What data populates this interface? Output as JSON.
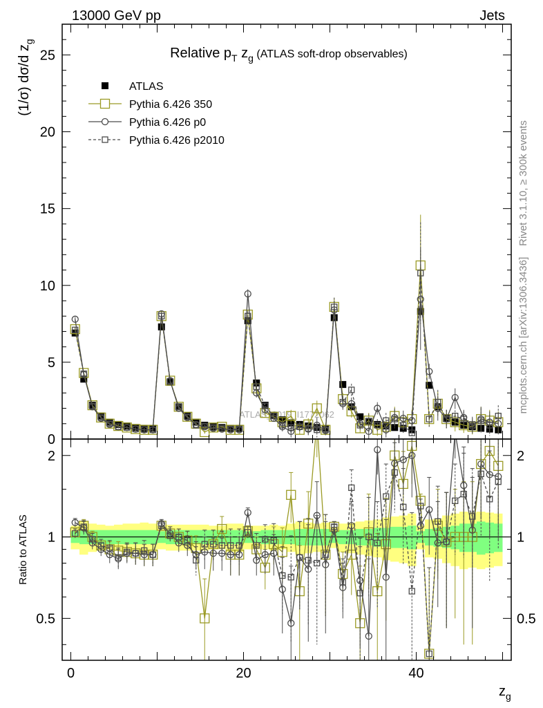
{
  "header": {
    "process": "13000 GeV pp",
    "category": "Jets"
  },
  "side": {
    "rivet": "Rivet 3.1.10, ≥ 300k events",
    "site": "mcplots.cern.ch [arXiv:1306.3436]"
  },
  "chart_data": {
    "type": "line",
    "title_prefix": "Relative p",
    "title_sub1": "T",
    "title_mid": " z",
    "title_sub2": "g",
    "title_suffix": " (ATLAS soft-drop observables)",
    "watermark": "ATLAS_2019_I1772062",
    "ylabel": "(1/σ) dσ/d z",
    "ylabel_sub": "g",
    "xlabel": "z",
    "xlabel_sub": "g",
    "ratio_ylabel": "Ratio to ATLAS",
    "xlim": [
      -1,
      51
    ],
    "ylim": [
      0,
      27
    ],
    "ratio_ylim": [
      0.35,
      2.3
    ],
    "xticks": [
      0,
      20,
      40
    ],
    "yticks": [
      0,
      5,
      10,
      15,
      20,
      25
    ],
    "ratio_ticks": [
      0.5,
      1,
      2
    ],
    "ratio_tick_labels": [
      "0.5",
      "1",
      "2"
    ],
    "legend": [
      {
        "name": "ATLAS",
        "style": "data",
        "color": "#000000"
      },
      {
        "name": "Pythia 6.426 350",
        "style": "square-solid",
        "color": "#9a9a24"
      },
      {
        "name": "Pythia 6.426 p0",
        "style": "circle-solid",
        "color": "#4a4a4a"
      },
      {
        "name": "Pythia 6.426 p2010",
        "style": "square-dashed",
        "color": "#4a4a4a"
      }
    ],
    "x": [
      0.5,
      1.5,
      2.5,
      3.5,
      4.5,
      5.5,
      6.5,
      7.5,
      8.5,
      9.5,
      10.5,
      11.5,
      12.5,
      13.5,
      14.5,
      15.5,
      16.5,
      17.5,
      18.5,
      19.5,
      20.5,
      21.5,
      22.5,
      23.5,
      24.5,
      25.5,
      26.5,
      27.5,
      28.5,
      29.5,
      30.5,
      31.5,
      32.5,
      33.5,
      34.5,
      35.5,
      36.5,
      37.5,
      38.5,
      39.5,
      40.5,
      41.5,
      42.5,
      43.5,
      44.5,
      45.5,
      46.5,
      47.5,
      48.5,
      49.5
    ],
    "series": [
      {
        "name": "ATLAS",
        "values": [
          6.9,
          3.9,
          2.2,
          1.5,
          1.1,
          0.95,
          0.85,
          0.75,
          0.7,
          0.7,
          7.3,
          3.7,
          2.1,
          1.5,
          1.1,
          0.9,
          0.8,
          0.75,
          0.7,
          0.7,
          7.7,
          3.65,
          2.2,
          1.55,
          1.25,
          1.05,
          0.95,
          0.85,
          0.75,
          0.7,
          7.9,
          3.55,
          2.1,
          1.45,
          1.15,
          0.95,
          0.85,
          0.75,
          0.7,
          0.6,
          8.3,
          3.5,
          2.1,
          1.35,
          1.1,
          0.9,
          0.8,
          0.7,
          0.65,
          0.6
        ],
        "band_inner": [
          0.05,
          0.06,
          0.06,
          0.06,
          0.06,
          0.06,
          0.06,
          0.06,
          0.06,
          0.06,
          0.05,
          0.06,
          0.06,
          0.06,
          0.06,
          0.06,
          0.06,
          0.06,
          0.06,
          0.06,
          0.05,
          0.05,
          0.06,
          0.06,
          0.06,
          0.06,
          0.07,
          0.07,
          0.07,
          0.07,
          0.05,
          0.06,
          0.06,
          0.07,
          0.07,
          0.08,
          0.08,
          0.09,
          0.09,
          0.1,
          0.05,
          0.07,
          0.08,
          0.09,
          0.1,
          0.12,
          0.12,
          0.14,
          0.13,
          0.12
        ],
        "band_outer": [
          0.1,
          0.14,
          0.12,
          0.11,
          0.1,
          0.11,
          0.12,
          0.12,
          0.13,
          0.12,
          0.1,
          0.11,
          0.11,
          0.11,
          0.11,
          0.11,
          0.1,
          0.1,
          0.12,
          0.12,
          0.1,
          0.1,
          0.1,
          0.11,
          0.1,
          0.12,
          0.14,
          0.13,
          0.12,
          0.13,
          0.09,
          0.12,
          0.13,
          0.14,
          0.15,
          0.16,
          0.18,
          0.19,
          0.2,
          0.22,
          0.1,
          0.16,
          0.17,
          0.2,
          0.22,
          0.24,
          0.23,
          0.24,
          0.23,
          0.22
        ]
      },
      {
        "name": "Pythia 6.426 350",
        "values": [
          7.15,
          4.3,
          2.2,
          1.4,
          1.0,
          0.85,
          0.75,
          0.65,
          0.6,
          0.6,
          8.0,
          3.8,
          2.1,
          1.45,
          1.0,
          0.45,
          0.75,
          0.8,
          0.6,
          0.6,
          8.1,
          3.3,
          1.7,
          1.45,
          1.1,
          1.5,
          0.6,
          0.95,
          2.0,
          0.6,
          8.6,
          2.6,
          1.8,
          0.7,
          1.2,
          0.6,
          0.8,
          1.5,
          1.1,
          1.3,
          11.3,
          1.3,
          2.3,
          1.3,
          1.1,
          0.9,
          0.8,
          1.3,
          1.2,
          1.1
        ],
        "ratio": [
          1.04,
          1.1,
          1.0,
          0.93,
          0.9,
          0.89,
          0.88,
          0.87,
          0.86,
          0.86,
          1.1,
          1.03,
          1.0,
          0.97,
          0.91,
          0.5,
          0.94,
          1.07,
          0.86,
          0.86,
          1.05,
          0.9,
          0.77,
          0.94,
          0.88,
          1.43,
          0.63,
          1.12,
          2.67,
          0.86,
          1.09,
          0.73,
          0.86,
          0.48,
          1.04,
          0.63,
          0.94,
          2.0,
          1.57,
          2.17,
          1.36,
          0.37,
          1.1,
          0.96,
          1.0,
          1.0,
          1.0,
          1.86,
          2.08,
          1.83
        ],
        "ratio_err": [
          0.04,
          0.06,
          0.05,
          0.05,
          0.06,
          0.07,
          0.07,
          0.08,
          0.08,
          0.08,
          0.04,
          0.06,
          0.07,
          0.08,
          0.1,
          0.2,
          0.12,
          0.12,
          0.14,
          0.14,
          0.05,
          0.1,
          0.13,
          0.15,
          0.2,
          0.3,
          0.3,
          0.35,
          0.7,
          0.35,
          0.05,
          0.15,
          0.25,
          0.3,
          0.4,
          0.4,
          0.45,
          0.5,
          0.5,
          0.6,
          0.08,
          0.4,
          0.4,
          0.5,
          0.5,
          0.6,
          0.6,
          0.7,
          0.7,
          0.7
        ],
        "errors": [
          0.15,
          0.15,
          0.1,
          0.1,
          0.1,
          0.1,
          0.1,
          0.1,
          0.1,
          0.1,
          0.2,
          0.15,
          0.1,
          0.1,
          0.1,
          0.1,
          0.1,
          0.1,
          0.1,
          0.1,
          0.3,
          0.3,
          0.2,
          0.2,
          0.3,
          0.4,
          0.3,
          0.4,
          0.5,
          0.3,
          0.6,
          0.4,
          0.4,
          0.3,
          0.5,
          0.4,
          0.5,
          0.6,
          0.5,
          0.6,
          3.3,
          0.5,
          0.8,
          0.6,
          0.6,
          0.5,
          0.5,
          0.8,
          0.7,
          0.7
        ]
      },
      {
        "name": "Pythia 6.426 p0",
        "values": [
          7.8,
          4.2,
          2.1,
          1.35,
          0.95,
          0.8,
          0.75,
          0.65,
          0.6,
          0.6,
          8.15,
          3.8,
          2.0,
          1.4,
          0.95,
          0.8,
          0.7,
          0.65,
          0.6,
          0.6,
          9.45,
          3.0,
          1.9,
          1.35,
          0.8,
          0.5,
          0.8,
          0.65,
          0.9,
          0.55,
          8.4,
          2.3,
          2.3,
          1.0,
          0.5,
          2.0,
          0.6,
          1.4,
          1.35,
          1.2,
          9.1,
          4.4,
          2.0,
          1.3,
          2.7,
          1.4,
          0.85,
          1.3,
          1.1,
          1.0
        ],
        "ratio": [
          1.13,
          1.08,
          0.95,
          0.9,
          0.86,
          0.83,
          0.87,
          0.87,
          0.86,
          0.86,
          1.12,
          1.03,
          0.95,
          0.93,
          0.86,
          0.88,
          0.87,
          0.87,
          0.86,
          0.86,
          1.23,
          0.82,
          0.86,
          0.87,
          0.64,
          0.48,
          0.84,
          0.76,
          1.2,
          0.79,
          1.06,
          0.65,
          1.1,
          0.69,
          0.43,
          2.1,
          0.71,
          1.87,
          1.93,
          2.0,
          1.1,
          1.26,
          0.95,
          0.96,
          2.45,
          1.55,
          1.06,
          1.86,
          1.7,
          1.67
        ],
        "ratio_err": [
          0.04,
          0.06,
          0.05,
          0.05,
          0.06,
          0.07,
          0.07,
          0.08,
          0.08,
          0.08,
          0.04,
          0.06,
          0.07,
          0.08,
          0.1,
          0.12,
          0.12,
          0.12,
          0.14,
          0.14,
          0.05,
          0.1,
          0.13,
          0.15,
          0.2,
          0.3,
          0.3,
          0.35,
          0.4,
          0.35,
          0.05,
          0.15,
          0.25,
          0.3,
          0.4,
          0.4,
          0.45,
          0.5,
          0.5,
          0.6,
          0.08,
          0.4,
          0.4,
          0.5,
          0.5,
          0.6,
          0.6,
          0.7,
          0.7,
          0.7
        ],
        "errors": [
          0.15,
          0.15,
          0.1,
          0.1,
          0.1,
          0.1,
          0.1,
          0.1,
          0.1,
          0.1,
          0.2,
          0.15,
          0.1,
          0.1,
          0.1,
          0.1,
          0.1,
          0.1,
          0.1,
          0.1,
          0.3,
          0.3,
          0.2,
          0.2,
          0.3,
          0.4,
          0.3,
          0.4,
          0.5,
          0.3,
          0.6,
          0.4,
          0.4,
          0.3,
          0.5,
          0.4,
          0.5,
          0.6,
          0.5,
          0.6,
          3.3,
          0.5,
          0.8,
          0.6,
          0.6,
          0.5,
          0.5,
          0.8,
          0.7,
          0.7
        ]
      },
      {
        "name": "Pythia 6.426 p2010",
        "values": [
          7.1,
          4.25,
          2.15,
          1.4,
          1.0,
          0.8,
          0.75,
          0.65,
          0.62,
          0.6,
          8.0,
          3.75,
          2.1,
          1.45,
          0.9,
          0.85,
          0.75,
          0.7,
          0.65,
          0.65,
          8.0,
          3.4,
          2.15,
          1.5,
          0.9,
          0.75,
          0.8,
          0.7,
          0.6,
          0.6,
          8.6,
          2.4,
          3.2,
          0.9,
          1.15,
          0.9,
          1.2,
          1.3,
          0.9,
          0.4,
          10.8,
          1.3,
          2.4,
          1.3,
          1.5,
          1.3,
          0.95,
          1.2,
          0.9,
          1.5
        ],
        "ratio": [
          1.03,
          1.09,
          0.98,
          0.93,
          0.91,
          0.84,
          0.88,
          0.87,
          0.89,
          0.86,
          1.1,
          1.01,
          1.0,
          0.97,
          0.82,
          0.94,
          0.94,
          0.93,
          0.93,
          0.93,
          1.04,
          0.93,
          0.98,
          0.97,
          0.72,
          0.71,
          0.84,
          0.82,
          0.8,
          0.86,
          1.09,
          0.68,
          1.52,
          0.62,
          1.0,
          0.95,
          1.41,
          1.73,
          1.29,
          0.63,
          1.3,
          0.37,
          1.14,
          0.96,
          1.36,
          1.44,
          1.19,
          1.71,
          1.38,
          1.6
        ],
        "ratio_err": [
          0.04,
          0.06,
          0.05,
          0.05,
          0.06,
          0.07,
          0.07,
          0.08,
          0.08,
          0.08,
          0.04,
          0.06,
          0.07,
          0.08,
          0.1,
          0.12,
          0.12,
          0.12,
          0.14,
          0.14,
          0.05,
          0.1,
          0.13,
          0.15,
          0.2,
          0.3,
          0.3,
          0.35,
          0.4,
          0.35,
          0.05,
          0.15,
          0.25,
          0.3,
          0.4,
          0.4,
          0.45,
          0.5,
          0.5,
          0.6,
          0.08,
          0.4,
          0.4,
          0.5,
          0.5,
          0.6,
          0.6,
          0.7,
          0.7,
          0.7
        ],
        "errors": [
          0.15,
          0.15,
          0.1,
          0.1,
          0.1,
          0.1,
          0.1,
          0.1,
          0.1,
          0.1,
          0.2,
          0.15,
          0.1,
          0.1,
          0.1,
          0.1,
          0.1,
          0.1,
          0.1,
          0.1,
          0.3,
          0.3,
          0.2,
          0.2,
          0.3,
          0.4,
          0.3,
          0.4,
          0.5,
          0.3,
          0.6,
          0.4,
          0.4,
          0.3,
          0.5,
          0.4,
          0.5,
          0.6,
          0.5,
          0.6,
          3.3,
          0.5,
          0.8,
          0.6,
          0.6,
          0.5,
          0.5,
          0.8,
          0.7,
          0.7
        ]
      }
    ]
  }
}
